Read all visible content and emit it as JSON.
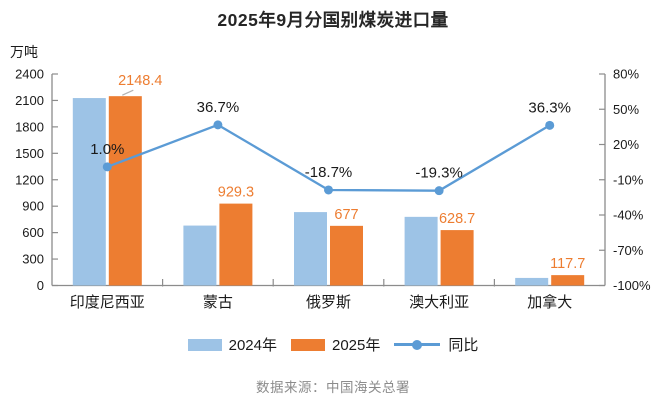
{
  "title": "2025年9月分国别煤炭进口量",
  "source_note": "数据来源：中国海关总署",
  "colors": {
    "bar_2024": "#9DC3E6",
    "bar_2025": "#ED7D31",
    "line_yoy": "#5B9BD5",
    "axis": "#8C8C8C",
    "value_label": "#ED7D31",
    "text": "#1A1A1A",
    "leader_line": "#B3B3B3",
    "source_text": "#8C8C8C",
    "title_text": "#262626"
  },
  "chart_data": {
    "type": "bar",
    "subtype": "grouped-bars-with-yoy-line",
    "title": "2025年9月分国别煤炭进口量",
    "categories": [
      "印度尼西亚",
      "蒙古",
      "俄罗斯",
      "澳大利亚",
      "加拿大"
    ],
    "series": [
      {
        "name": "2024年",
        "type": "bar",
        "axis": "left",
        "values": [
          2127,
          680,
          833,
          779,
          86
        ]
      },
      {
        "name": "2025年",
        "type": "bar",
        "axis": "left",
        "values": [
          2148.4,
          929.3,
          677,
          628.7,
          117.7
        ],
        "data_labels": [
          "2148.4",
          "929.3",
          "677",
          "628.7",
          "117.7"
        ]
      },
      {
        "name": "同比",
        "type": "line",
        "axis": "right",
        "values": [
          1.0,
          36.7,
          -18.7,
          -19.3,
          36.3
        ],
        "data_labels": [
          "1.0%",
          "36.7%",
          "-18.7%",
          "-19.3%",
          "36.3%"
        ]
      }
    ],
    "left_axis": {
      "title": "万吨",
      "min": 0,
      "max": 2400,
      "step": 300,
      "tick_labels": [
        "0",
        "300",
        "600",
        "900",
        "1200",
        "1500",
        "1800",
        "2100",
        "2400"
      ]
    },
    "right_axis": {
      "min": -100,
      "max": 80,
      "step": 30,
      "tick_labels": [
        "80%",
        "50%",
        "20%",
        "-10%",
        "-40%",
        "-70%",
        "-100%"
      ]
    },
    "legend_position": "bottom",
    "grid": false
  }
}
